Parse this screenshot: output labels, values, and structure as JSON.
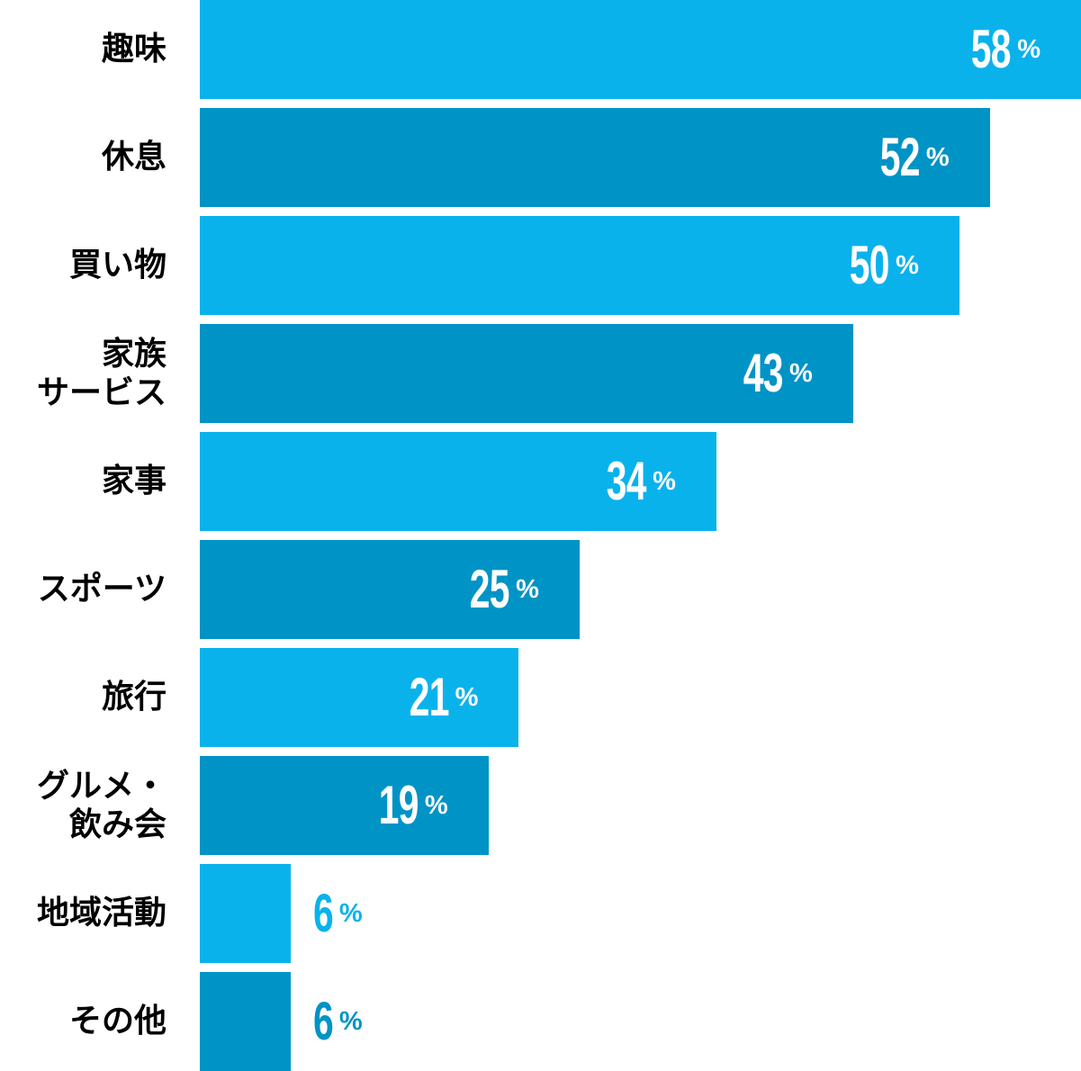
{
  "chart_data": {
    "type": "bar",
    "orientation": "horizontal",
    "title": "",
    "xlabel": "",
    "ylabel": "",
    "unit": "%",
    "percent_symbol": "%",
    "grid": false,
    "legend": false,
    "background_color": "#ffffff",
    "label_text_color": "#000000",
    "value_text_color_inside": "#ffffff",
    "colors": {
      "light": "#0ab2ec",
      "dark": "#0093c6"
    },
    "categories": [
      "趣味",
      "休息",
      "買い物",
      "家族サービス",
      "家事",
      "スポーツ",
      "旅行",
      "グルメ・飲み会",
      "地域活動",
      "その他"
    ],
    "values": [
      58,
      52,
      50,
      43,
      34,
      25,
      21,
      19,
      6,
      6
    ],
    "xlim": [
      0,
      58
    ],
    "rows": [
      {
        "label": "趣味",
        "value": 58,
        "shade": "light",
        "value_position": "inside"
      },
      {
        "label": "休息",
        "value": 52,
        "shade": "dark",
        "value_position": "inside"
      },
      {
        "label": "買い物",
        "value": 50,
        "shade": "light",
        "value_position": "inside"
      },
      {
        "label": "家族\nサービス",
        "value": 43,
        "shade": "dark",
        "value_position": "inside"
      },
      {
        "label": "家事",
        "value": 34,
        "shade": "light",
        "value_position": "inside"
      },
      {
        "label": "スポーツ",
        "value": 25,
        "shade": "dark",
        "value_position": "inside"
      },
      {
        "label": "旅行",
        "value": 21,
        "shade": "light",
        "value_position": "inside"
      },
      {
        "label": "グルメ・\n飲み会",
        "value": 19,
        "shade": "dark",
        "value_position": "inside"
      },
      {
        "label": "地域活動",
        "value": 6,
        "shade": "light",
        "value_position": "outside"
      },
      {
        "label": "その他",
        "value": 6,
        "shade": "dark",
        "value_position": "outside"
      }
    ]
  }
}
